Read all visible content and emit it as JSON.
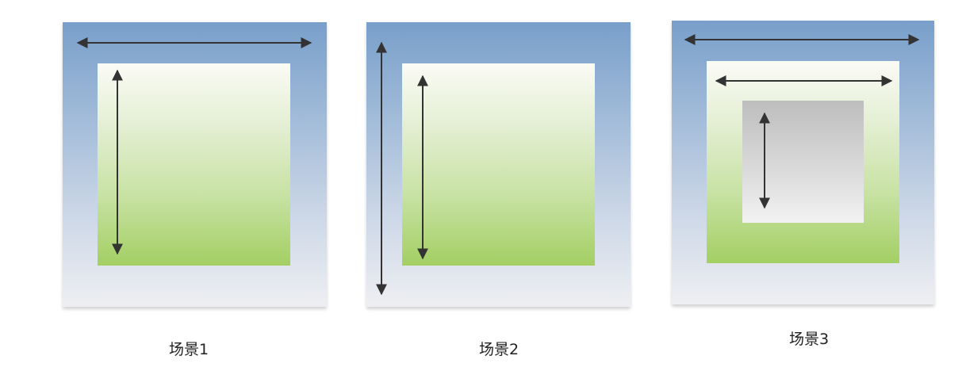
{
  "captions": {
    "scene1": "场景1",
    "scene2": "场景2",
    "scene3": "场景3"
  },
  "colors": {
    "outer_top": "#789fca",
    "outer_bottom": "#eeeff2",
    "green_top": "#fbfbf6",
    "green_bottom": "#a3cf63",
    "gray_top": "#bdbdbd",
    "gray_bottom": "#f2f2f2",
    "arrow": "#333333"
  }
}
